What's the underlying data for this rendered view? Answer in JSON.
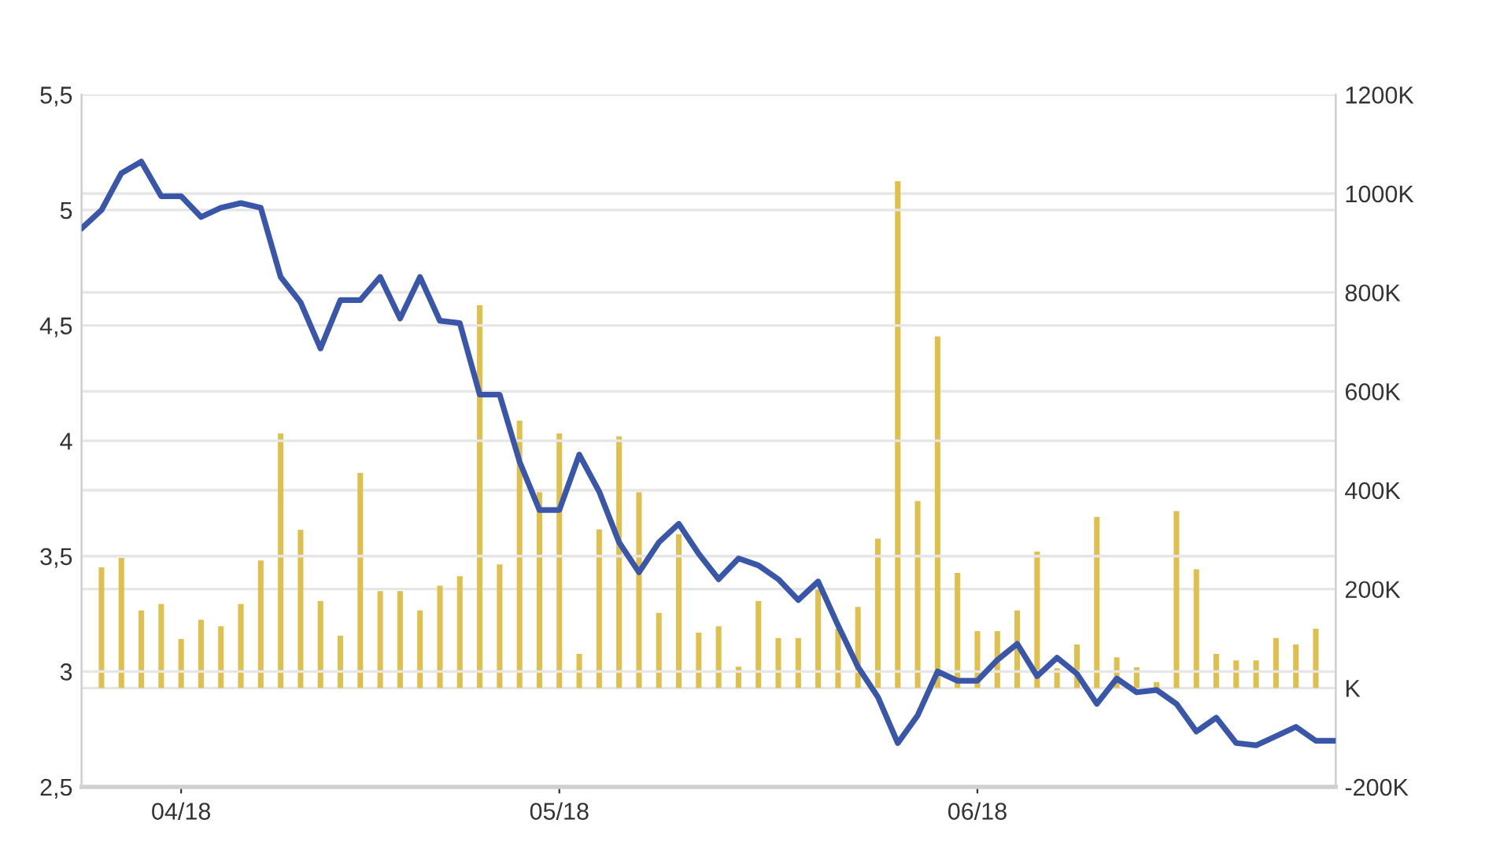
{
  "chart_data": {
    "type": "line",
    "categories": [
      null,
      null,
      null,
      null,
      null,
      "04/18",
      null,
      null,
      null,
      null,
      null,
      null,
      null,
      null,
      null,
      null,
      null,
      null,
      null,
      null,
      null,
      null,
      null,
      null,
      "05/18",
      null,
      null,
      null,
      null,
      null,
      null,
      null,
      null,
      null,
      null,
      null,
      null,
      null,
      null,
      null,
      null,
      null,
      null,
      null,
      null,
      "06/18",
      null,
      null,
      null,
      null,
      null,
      null,
      null,
      null,
      null,
      null,
      null,
      null,
      null,
      null,
      null,
      null,
      null,
      null
    ],
    "series": [
      {
        "type": "bar",
        "axis": "y2",
        "color": "#dfc04f",
        "values": [
          null,
          244,
          263,
          157,
          170,
          99,
          138,
          125,
          170,
          258,
          515,
          320,
          176,
          106,
          435,
          196,
          196,
          157,
          207,
          226,
          774,
          250,
          541,
          396,
          515,
          69,
          321,
          509,
          396,
          152,
          311,
          112,
          125,
          43,
          176,
          101,
          101,
          199,
          120,
          164,
          302,
          1025,
          378,
          711,
          233,
          115,
          115,
          157,
          276,
          40,
          88,
          346,
          62,
          42,
          12,
          358,
          240,
          69,
          56,
          56,
          101,
          88,
          120,
          null
        ]
      },
      {
        "color": "#3a56a8",
        "values": [
          4.92,
          5.0,
          5.16,
          5.21,
          5.06,
          5.06,
          4.97,
          5.01,
          5.03,
          5.01,
          4.71,
          4.6,
          4.4,
          4.61,
          4.61,
          4.71,
          4.53,
          4.71,
          4.52,
          4.51,
          4.2,
          4.2,
          3.91,
          3.7,
          3.7,
          3.94,
          3.78,
          3.56,
          3.43,
          3.56,
          3.64,
          3.51,
          3.4,
          3.49,
          3.46,
          3.4,
          3.31,
          3.39,
          3.2,
          3.02,
          2.89,
          2.69,
          2.81,
          3.0,
          2.96,
          2.96,
          3.05,
          3.12,
          2.98,
          3.06,
          2.99,
          2.86,
          2.97,
          2.91,
          2.92,
          2.86,
          2.74,
          2.8,
          2.69,
          2.68,
          2.72,
          2.76,
          2.7,
          2.7
        ]
      }
    ],
    "ylim": [
      2.5,
      5.5
    ],
    "yticks": [
      {
        "value": 2.5,
        "label": "2,5"
      },
      3,
      {
        "value": 3.5,
        "label": "3,5"
      },
      4,
      {
        "value": 4.5,
        "label": "4,5"
      },
      5,
      {
        "value": 5.5,
        "label": "5,5"
      }
    ],
    "y2lim": [
      -200,
      1200
    ],
    "y2ticks": [
      {
        "value": -200,
        "label": "-200K"
      },
      {
        "value": 0,
        "label": "K"
      },
      {
        "value": 200,
        "label": "200K"
      },
      {
        "value": 400,
        "label": "400K"
      },
      {
        "value": 600,
        "label": "600K"
      },
      {
        "value": 800,
        "label": "800K"
      },
      {
        "value": 1000,
        "label": "1000K"
      },
      {
        "value": 1200,
        "label": "1200K"
      }
    ],
    "grid": true,
    "line_style": "solid",
    "marker": "none"
  }
}
